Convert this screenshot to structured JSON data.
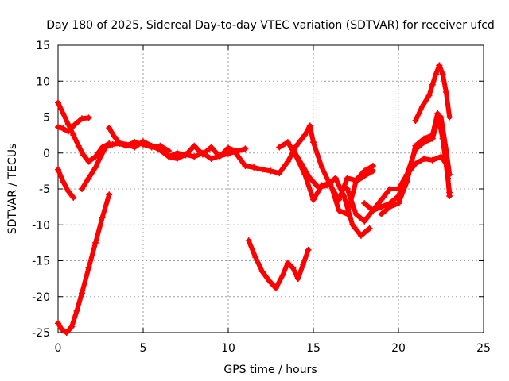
{
  "chart_data": {
    "type": "line",
    "title": "Day 180 of 2025, Sidereal Day-to-day VTEC variation (SDTVAR) for receiver ufcd",
    "xlabel": "GPS time / hours",
    "ylabel": "SDTVAR / TECUs",
    "xlim": [
      0,
      25
    ],
    "ylim": [
      -25,
      15
    ],
    "xticks": [
      0,
      5,
      10,
      15,
      20,
      25
    ],
    "yticks": [
      -25,
      -20,
      -15,
      -10,
      -5,
      0,
      5,
      10,
      15
    ],
    "xtick_labels": [
      "0",
      "5",
      "10",
      "15",
      "20",
      "25"
    ],
    "ytick_labels": [
      "-25",
      "-20",
      "-15",
      "-10",
      "-5",
      "0",
      "5",
      "10",
      "15"
    ],
    "grid": true,
    "color": "#ff0000",
    "marker": "+",
    "series": [
      {
        "name": "s1",
        "x": [
          0.0,
          0.3,
          0.6,
          1.0,
          1.4,
          1.8
        ],
        "y": [
          3.6,
          3.4,
          3.0,
          4.0,
          4.8,
          4.9
        ]
      },
      {
        "name": "s2",
        "x": [
          0.0,
          0.3,
          0.6,
          0.9,
          1.2,
          1.5,
          1.8,
          2.2,
          2.6,
          3.0
        ],
        "y": [
          7.0,
          5.5,
          4.0,
          2.5,
          1.0,
          -0.3,
          -1.2,
          -0.5,
          0.8,
          1.3
        ]
      },
      {
        "name": "s3",
        "x": [
          0.0,
          0.3,
          0.6,
          0.9
        ],
        "y": [
          -2.3,
          -4.0,
          -5.3,
          -6.2
        ]
      },
      {
        "name": "s4",
        "x": [
          1.4,
          1.8,
          2.2,
          2.5,
          2.8,
          3.2,
          3.6,
          4.0,
          4.5,
          5.0,
          5.5,
          6.0,
          6.5
        ],
        "y": [
          -5.0,
          -3.5,
          -2.0,
          -0.5,
          0.8,
          1.2,
          1.3,
          1.0,
          1.5,
          1.2,
          0.8,
          1.0,
          0.3
        ]
      },
      {
        "name": "s5",
        "x": [
          0.0,
          0.2,
          0.5,
          0.8,
          1.1,
          1.4,
          1.8,
          2.2,
          2.6,
          3.0
        ],
        "y": [
          -23.7,
          -24.5,
          -25.0,
          -24.2,
          -22.0,
          -19.5,
          -16.0,
          -12.5,
          -9.0,
          -5.8
        ]
      },
      {
        "name": "s6",
        "x": [
          3.0,
          3.3,
          3.6,
          4.0,
          4.5,
          5.0,
          5.5,
          6.0,
          6.5,
          7.0,
          7.5,
          8.0,
          8.5,
          9.0,
          9.5,
          10.0,
          10.5,
          11.0
        ],
        "y": [
          3.5,
          2.3,
          1.4,
          1.2,
          0.8,
          1.6,
          1.0,
          0.4,
          -0.5,
          0.0,
          -0.3,
          1.0,
          -0.2,
          0.8,
          -0.5,
          0.7,
          0.2,
          0.6
        ]
      },
      {
        "name": "s7",
        "x": [
          6.0,
          6.5,
          7.0,
          7.5,
          8.0,
          8.5,
          9.0,
          9.5,
          10.0,
          10.5
        ],
        "y": [
          0.5,
          -0.5,
          -0.8,
          -0.2,
          -0.5,
          0.0,
          -0.8,
          -0.4,
          -0.1,
          0.3
        ]
      },
      {
        "name": "s8",
        "x": [
          10.5,
          11.0,
          11.5,
          12.0,
          12.5,
          13.0,
          13.5,
          14.0,
          14.5,
          14.8,
          15.0,
          15.5,
          16.0,
          16.5,
          17.0,
          17.5,
          18.0,
          18.5
        ],
        "y": [
          -0.2,
          -1.8,
          -2.0,
          -2.3,
          -2.5,
          -2.8,
          -1.2,
          1.0,
          2.5,
          3.8,
          1.5,
          -2.0,
          -4.5,
          -6.5,
          -3.5,
          -3.8,
          -2.5,
          -1.8
        ]
      },
      {
        "name": "s9",
        "x": [
          13.0,
          13.5,
          14.0,
          14.5,
          15.0,
          15.5,
          16.0,
          16.5,
          17.0,
          17.5,
          18.0,
          18.5
        ],
        "y": [
          0.8,
          1.5,
          -0.5,
          -3.0,
          -6.5,
          -4.5,
          -4.2,
          -8.0,
          -8.5,
          -4.0,
          -3.2,
          -2.5
        ]
      },
      {
        "name": "s10",
        "x": [
          13.8,
          14.3,
          14.8,
          15.3,
          15.8,
          16.3,
          16.8,
          17.3,
          17.8,
          18.3
        ],
        "y": [
          0.5,
          -1.5,
          -3.5,
          -4.8,
          -4.5,
          -3.5,
          -6.0,
          -10.0,
          -11.5,
          -10.5
        ]
      },
      {
        "name": "s11",
        "x": [
          11.2,
          11.6,
          12.0,
          12.4,
          12.8,
          13.2,
          13.5,
          13.8,
          14.1,
          14.4,
          14.7
        ],
        "y": [
          -12.2,
          -14.5,
          -16.5,
          -17.8,
          -18.8,
          -17.0,
          -15.3,
          -16.0,
          -17.5,
          -15.5,
          -13.5
        ]
      },
      {
        "name": "s12",
        "x": [
          17.0,
          17.5,
          18.0,
          18.5,
          19.0,
          19.5,
          20.0,
          20.5,
          21.0,
          21.5,
          22.0,
          22.5,
          22.8,
          23.0
        ],
        "y": [
          -5.0,
          -8.5,
          -9.5,
          -8.0,
          -6.5,
          -5.0,
          -5.0,
          -3.0,
          -1.5,
          -0.8,
          -1.0,
          -0.5,
          -1.5,
          -5.5
        ]
      },
      {
        "name": "s13",
        "x": [
          18.0,
          18.5,
          19.0,
          19.5,
          20.0,
          20.5,
          21.0,
          21.5,
          22.0,
          22.3,
          22.5,
          22.8,
          23.0
        ],
        "y": [
          -7.0,
          -8.0,
          -7.5,
          -7.0,
          -6.0,
          -3.0,
          0.5,
          1.5,
          2.0,
          4.5,
          5.0,
          0.5,
          -3.0
        ]
      },
      {
        "name": "s14",
        "x": [
          19.0,
          19.5,
          20.0,
          20.5,
          21.0,
          21.5,
          22.0,
          22.3,
          22.6,
          22.9,
          23.0
        ],
        "y": [
          -8.5,
          -7.5,
          -7.0,
          -4.0,
          1.0,
          2.0,
          2.5,
          5.5,
          2.0,
          -3.5,
          -6.0
        ]
      },
      {
        "name": "s15",
        "x": [
          21.0,
          21.4,
          21.8,
          22.0,
          22.2,
          22.4,
          22.6,
          22.8,
          23.0
        ],
        "y": [
          4.5,
          6.5,
          8.0,
          9.5,
          11.0,
          12.2,
          11.0,
          8.5,
          5.0
        ]
      }
    ]
  }
}
